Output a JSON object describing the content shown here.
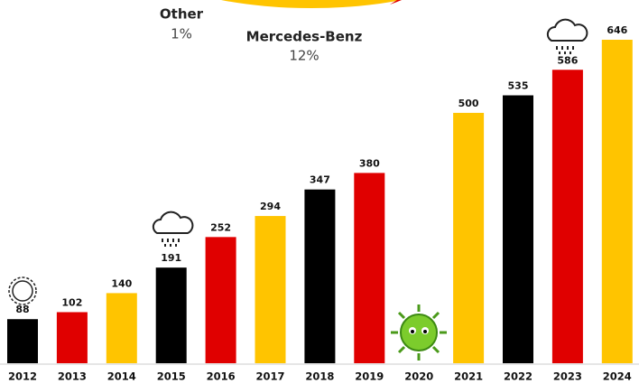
{
  "chart_data": {
    "type": "bar",
    "categories": [
      "2012",
      "2013",
      "2014",
      "2015",
      "2016",
      "2017",
      "2018",
      "2019",
      "2020",
      "2021",
      "2022",
      "2023",
      "2024"
    ],
    "values": [
      88,
      102,
      140,
      191,
      252,
      294,
      347,
      380,
      null,
      500,
      535,
      586,
      646
    ],
    "colors": [
      "#000000",
      "#e00000",
      "#ffc400",
      "#000000",
      "#e00000",
      "#ffc400",
      "#000000",
      "#e00000",
      null,
      "#ffc400",
      "#000000",
      "#e00000",
      "#ffc400"
    ],
    "annotations": [
      {
        "label": "Other",
        "value_label": "1%"
      },
      {
        "label": "Mercedes-Benz",
        "value_label": "12%"
      }
    ]
  }
}
